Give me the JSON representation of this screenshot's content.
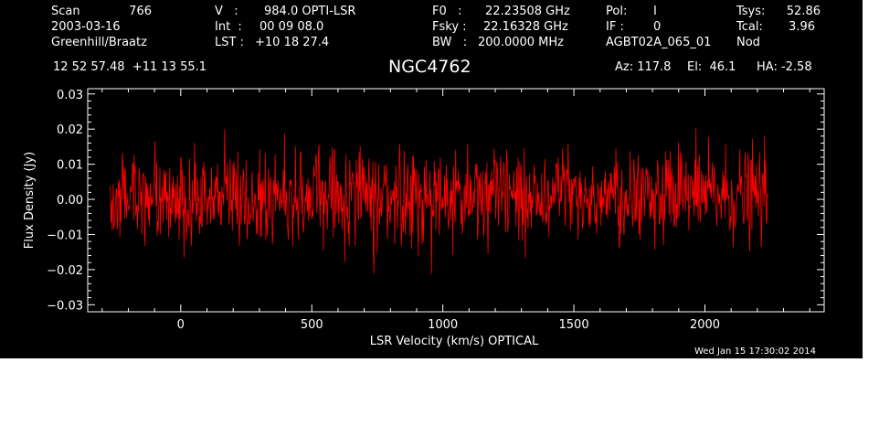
{
  "header": {
    "scan_label": "Scan",
    "scan_value": "766",
    "date": "2003-03-16",
    "observers": "Greenhill/Braatz",
    "v_label": "V   :",
    "v_value": "984.0 OPTI-LSR",
    "int_label": "Int  :",
    "int_value": "00 09 08.0",
    "lst_label": "LST :",
    "lst_value": "+10 18 27.4",
    "f0_label": "F0   :",
    "f0_value": "22.23508 GHz",
    "fsky_label": "Fsky :",
    "fsky_value": "22.16328 GHz",
    "bw_label": "BW   :",
    "bw_value": "200.0000 MHz",
    "pol_label": "Pol:",
    "pol_value": "I",
    "if_label": "IF :",
    "if_value": "0",
    "project": "AGBT02A_065_01",
    "tsys_label": "Tsys:",
    "tsys_value": "52.86",
    "tcal_label": "Tcal:",
    "tcal_value": "3.96",
    "proc": "Nod",
    "coords": "12 52 57.48  +11 13 55.1",
    "source": "NGC4762",
    "az": "Az: 117.8",
    "el": "El:  46.1",
    "ha": "HA: -2.58"
  },
  "timestamp": "Wed Jan 15 17:30:02 2014",
  "colors": {
    "background": "#000000",
    "axes": "#ffffff",
    "trace": "#ff0000"
  },
  "chart_data": {
    "type": "line",
    "xlabel": "LSR Velocity (km/s) OPTICAL",
    "ylabel": "Flux Density (Jy)",
    "xlim": [
      -355,
      2455
    ],
    "ylim": [
      -0.032,
      0.0315
    ],
    "xticks": [
      0,
      500,
      1000,
      1500,
      2000
    ],
    "xtick_labels": [
      "0",
      "500",
      "1000",
      "1500",
      "2000"
    ],
    "yticks": [
      -0.03,
      -0.02,
      -0.01,
      0.0,
      0.01,
      0.02,
      0.03
    ],
    "ytick_labels": [
      "−0.03",
      "−0.02",
      "−0.01",
      "0.00",
      "0.01",
      "0.02",
      "0.03"
    ],
    "grid": false,
    "series": [
      {
        "x_start": -270,
        "x_end": 2240,
        "points": 1200,
        "mean": 0.001,
        "noise_rms": 0.0065,
        "max": 0.024,
        "min": -0.025
      }
    ]
  }
}
